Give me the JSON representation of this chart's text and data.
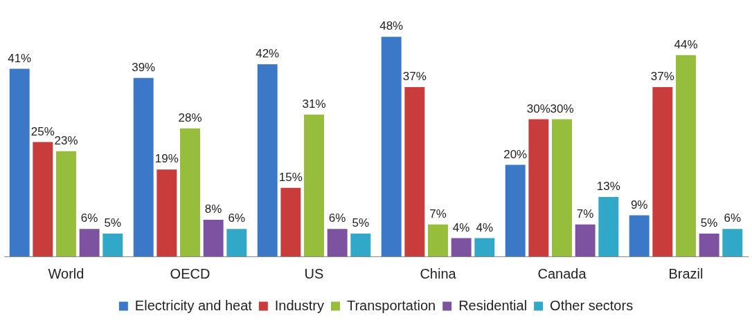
{
  "chart_data": {
    "type": "bar",
    "categories": [
      "World",
      "OECD",
      "US",
      "China",
      "Canada",
      "Brazil"
    ],
    "series": [
      {
        "name": "Electricity and heat",
        "color": "#3c78c8",
        "values": [
          41,
          39,
          42,
          48,
          20,
          9
        ],
        "value_labels": [
          "41%",
          "39%",
          "42%",
          "48%",
          "20%",
          "9%"
        ]
      },
      {
        "name": "Industry",
        "color": "#c83c3c",
        "values": [
          25,
          19,
          15,
          37,
          30,
          37
        ],
        "value_labels": [
          "25%",
          "19%",
          "15%",
          "37%",
          "30%",
          "37%"
        ]
      },
      {
        "name": "Transportation",
        "color": "#96be3c",
        "values": [
          23,
          28,
          31,
          7,
          30,
          44
        ],
        "value_labels": [
          "23%",
          "28%",
          "31%",
          "7%",
          "30%",
          "44%"
        ]
      },
      {
        "name": "Residential",
        "color": "#7d52a0",
        "values": [
          6,
          8,
          6,
          4,
          7,
          5
        ],
        "value_labels": [
          "6%",
          "8%",
          "6%",
          "4%",
          "7%",
          "5%"
        ]
      },
      {
        "name": "Other sectors",
        "color": "#32a8c8",
        "values": [
          5,
          6,
          5,
          4,
          13,
          6
        ],
        "value_labels": [
          "5%",
          "6%",
          "5%",
          "4%",
          "13%",
          "6%"
        ]
      }
    ],
    "legend": "bottom",
    "grid": false
  }
}
